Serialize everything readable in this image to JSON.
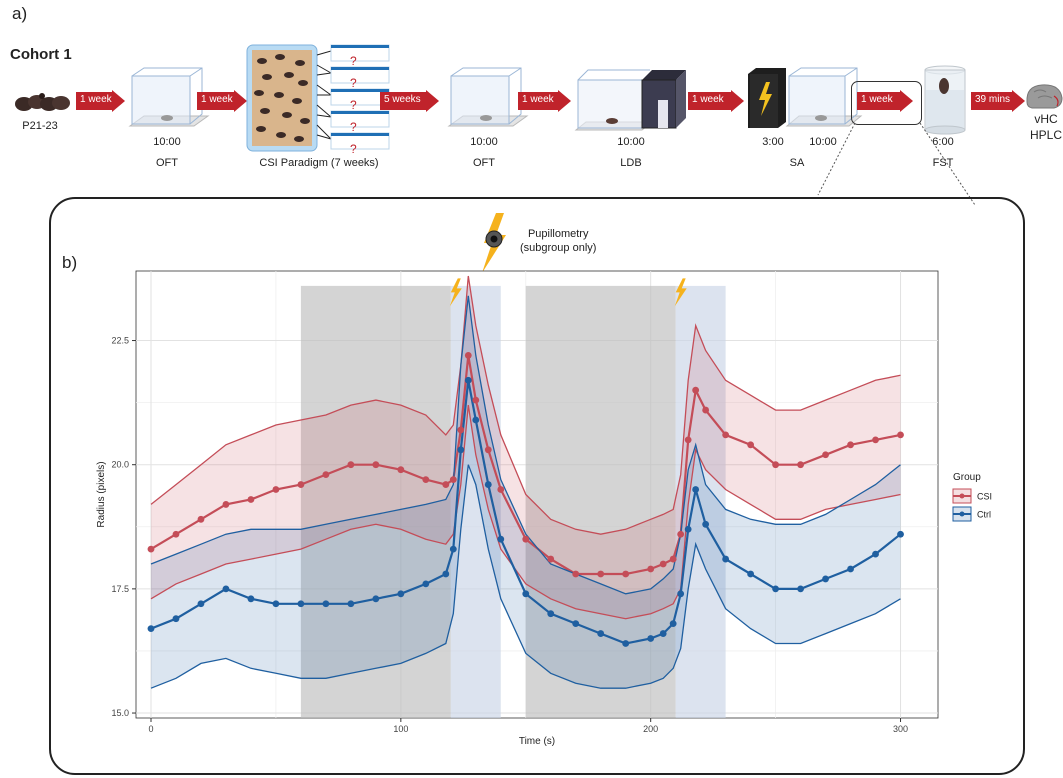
{
  "panel_a": {
    "label": "a)",
    "cohort": "Cohort 1",
    "arrows": [
      "1 week",
      "1 week",
      "5 weeks",
      "1 week",
      "1 week",
      "1 week",
      "39 mins"
    ],
    "labels": {
      "age": "P21-23",
      "oft1_time": "10:00",
      "oft1_name": "OFT",
      "csi_name": "CSI Paradigm (7 weeks)",
      "oft2_time": "10:00",
      "oft2_name": "OFT",
      "ldb_time": "10:00",
      "ldb_name": "LDB",
      "sa_time1": "3:00",
      "sa_time2": "10:00",
      "sa_name": "SA",
      "fst_time": "6:00",
      "fst_name": "FST",
      "end_line1": "vHC",
      "end_line2": "HPLC",
      "question": "?"
    },
    "colors": {
      "arrow": "#c0232b",
      "cage_edge": "#9bb6d6"
    }
  },
  "panel_b": {
    "label": "b)",
    "pupillometry_line1": "Pupillometry",
    "pupillometry_line2": "(subgroup only)"
  },
  "chart_data": {
    "type": "line",
    "xlabel": "Time (s)",
    "ylabel": "Radius (pixels)",
    "xlim": [
      -6,
      315
    ],
    "ylim": [
      14.9,
      23.9
    ],
    "xticks": [
      0,
      100,
      200,
      300
    ],
    "yticks": [
      15.0,
      17.5,
      20.0,
      22.5
    ],
    "ytick_labels": [
      "15.0",
      "17.5",
      "20.0",
      "22.5"
    ],
    "grid": true,
    "legend_title": "Group",
    "legend_position": "right",
    "shaded_regions": [
      {
        "x": [
          60,
          120
        ],
        "color": "#bdbdbd"
      },
      {
        "x": [
          120,
          140
        ],
        "color": "#c9d4e6"
      },
      {
        "x": [
          150,
          210
        ],
        "color": "#bdbdbd"
      },
      {
        "x": [
          210,
          230
        ],
        "color": "#c9d4e6"
      }
    ],
    "stimulus_markers": [
      122,
      212
    ],
    "series": [
      {
        "name": "CSI",
        "color": "#c44d58",
        "x": [
          0,
          10,
          20,
          30,
          40,
          50,
          60,
          70,
          80,
          90,
          100,
          110,
          118,
          121,
          124,
          127,
          130,
          135,
          140,
          150,
          160,
          170,
          180,
          190,
          200,
          205,
          209,
          212,
          215,
          218,
          222,
          230,
          240,
          250,
          260,
          270,
          280,
          290,
          300
        ],
        "mean": [
          18.3,
          18.6,
          18.9,
          19.2,
          19.3,
          19.5,
          19.6,
          19.8,
          20.0,
          20.0,
          19.9,
          19.7,
          19.6,
          19.7,
          20.7,
          22.2,
          21.3,
          20.3,
          19.5,
          18.5,
          18.1,
          17.8,
          17.8,
          17.8,
          17.9,
          18.0,
          18.1,
          18.6,
          20.5,
          21.5,
          21.1,
          20.6,
          20.4,
          20.0,
          20.0,
          20.2,
          20.4,
          20.5,
          20.6
        ],
        "upper": [
          19.2,
          19.6,
          20.0,
          20.4,
          20.6,
          20.8,
          20.9,
          21.0,
          21.2,
          21.3,
          21.2,
          21.0,
          20.6,
          20.8,
          22.0,
          23.8,
          22.8,
          21.6,
          20.6,
          19.4,
          18.9,
          18.7,
          18.6,
          18.7,
          18.9,
          19.0,
          19.1,
          19.8,
          21.7,
          22.8,
          22.3,
          21.7,
          21.4,
          21.1,
          21.1,
          21.3,
          21.5,
          21.7,
          21.8
        ],
        "lower": [
          17.3,
          17.6,
          17.8,
          18.0,
          18.1,
          18.2,
          18.3,
          18.5,
          18.7,
          18.8,
          18.7,
          18.5,
          18.4,
          18.6,
          19.6,
          21.2,
          20.2,
          19.1,
          18.3,
          17.6,
          17.3,
          17.1,
          17.0,
          16.9,
          17.0,
          17.1,
          17.2,
          17.5,
          19.2,
          20.3,
          19.9,
          19.5,
          19.2,
          18.9,
          18.9,
          19.1,
          19.2,
          19.3,
          19.4
        ]
      },
      {
        "name": "Ctrl",
        "color": "#1f5fa0",
        "x": [
          0,
          10,
          20,
          30,
          40,
          50,
          60,
          70,
          80,
          90,
          100,
          110,
          118,
          121,
          124,
          127,
          130,
          135,
          140,
          150,
          160,
          170,
          180,
          190,
          200,
          205,
          209,
          212,
          215,
          218,
          222,
          230,
          240,
          250,
          260,
          270,
          280,
          290,
          300
        ],
        "mean": [
          16.7,
          16.9,
          17.2,
          17.5,
          17.3,
          17.2,
          17.2,
          17.2,
          17.2,
          17.3,
          17.4,
          17.6,
          17.8,
          18.3,
          20.3,
          21.7,
          20.9,
          19.6,
          18.5,
          17.4,
          17.0,
          16.8,
          16.6,
          16.4,
          16.5,
          16.6,
          16.8,
          17.4,
          18.7,
          19.5,
          18.8,
          18.1,
          17.8,
          17.5,
          17.5,
          17.7,
          17.9,
          18.2,
          18.6
        ],
        "upper": [
          18.0,
          18.2,
          18.4,
          18.6,
          18.7,
          18.7,
          18.7,
          18.8,
          18.9,
          19.0,
          19.1,
          19.2,
          19.3,
          19.6,
          22.0,
          23.4,
          22.2,
          20.8,
          19.7,
          18.6,
          18.0,
          17.8,
          17.6,
          17.4,
          17.5,
          17.7,
          17.9,
          18.6,
          19.9,
          20.4,
          19.6,
          19.1,
          18.9,
          18.8,
          18.8,
          19.0,
          19.3,
          19.6,
          20.0
        ],
        "lower": [
          15.5,
          15.7,
          16.0,
          16.1,
          15.9,
          15.8,
          15.7,
          15.7,
          15.8,
          15.9,
          16.0,
          16.2,
          16.4,
          17.0,
          18.7,
          20.0,
          19.6,
          18.3,
          17.3,
          16.2,
          15.8,
          15.6,
          15.5,
          15.5,
          15.6,
          15.7,
          15.9,
          16.3,
          17.5,
          18.4,
          17.9,
          17.1,
          16.7,
          16.4,
          16.4,
          16.6,
          16.8,
          17.0,
          17.3
        ]
      }
    ]
  }
}
